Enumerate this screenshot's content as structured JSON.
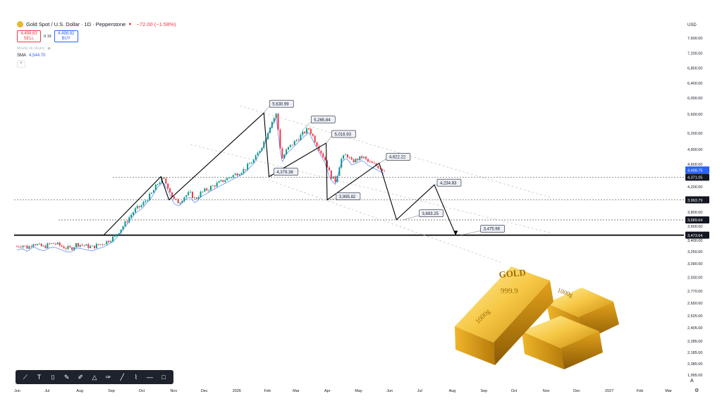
{
  "header": {
    "title": "Gold Spot / U.S. Dollar · 1D · Pepperstone",
    "change": "−72.00 (−1.58%)",
    "sell_price": "4,498.63",
    "sell_label": "SELL",
    "spread": "0.19",
    "buy_price": "4,498.82",
    "buy_label": "BUY",
    "indicator": "Mostly Hi (Auto)",
    "sma_label": "SMA",
    "sma_value": "4,544.70"
  },
  "currency": "USD",
  "toolbar_icons": [
    "trend-line-icon",
    "text-icon",
    "note-icon",
    "brush-icon",
    "highlighter-icon",
    "ruler-icon",
    "pen-icon",
    "line-icon",
    "path-icon",
    "horizontal-line-icon",
    "rectangle-icon"
  ],
  "bottom_right": {
    "auto_label": "A",
    "settings_icon": "gear-icon"
  },
  "gold_bars": {
    "label_top": "GOLD",
    "purity": "999.9",
    "weight": "1000g",
    "small_label": "1000g"
  },
  "chart_data": {
    "type": "candlestick",
    "y_axis_ticks": [
      "7,600.00",
      "7,200.00",
      "6,800.00",
      "6,400.00",
      "6,000.00",
      "5,600.00",
      "5,200.00",
      "4,900.00",
      "4,600.00",
      "4,200.00",
      "3,800.00",
      "3,600.00",
      "3,400.00",
      "3,250.00",
      "3,090.00",
      "2,930.00",
      "2,770.00",
      "2,650.00",
      "2,525.00",
      "2,405.00",
      "2,285.00",
      "2,185.00",
      "2,085.00",
      "1,995.00"
    ],
    "x_axis_ticks": [
      "Jun",
      "Jul",
      "Aug",
      "Sep",
      "Oct",
      "Nov",
      "Dec",
      "2026",
      "Feb",
      "Mar",
      "Apr",
      "May",
      "Jun",
      "Jul",
      "Aug",
      "Sep",
      "Oct",
      "Nov",
      "Dec",
      "2027",
      "Feb",
      "Mar"
    ],
    "price_labels": [
      {
        "value": "4,498.75",
        "style": "blue"
      },
      {
        "value": "4,371.05",
        "style": "dark"
      },
      {
        "value": "3,993.79",
        "style": "dark"
      },
      {
        "value": "3,689.64",
        "style": "dark"
      },
      {
        "value": "3,473.64",
        "style": "dark"
      }
    ],
    "annotations": [
      "5,630.99",
      "5,265.84",
      "5,016.93",
      "4,379.38",
      "4,622.22",
      "3,995.82",
      "4,234.83",
      "3,693.25",
      "3,475.96"
    ],
    "horizontal_levels": [
      4371.05,
      3993.79,
      3689.64
    ],
    "support_level": 3473.64,
    "zigzag": [
      {
        "date": "2025-08-25",
        "price": 3473.64
      },
      {
        "date": "2025-10-20",
        "price": 4379.38
      },
      {
        "date": "2025-10-28",
        "price": 3993.79
      },
      {
        "date": "2026-01-29",
        "price": 5630.99
      },
      {
        "date": "2026-02-03",
        "price": 4379.38
      },
      {
        "date": "2026-03-31",
        "price": 5016.93
      },
      {
        "date": "2026-04-01",
        "price": 3993.79
      },
      {
        "date": "2026-05-22",
        "price": 4622.22
      },
      {
        "date": "2026-06-08",
        "price": 3693.25
      },
      {
        "date": "2026-07-15",
        "price": 4234.83
      },
      {
        "date": "2026-08-05",
        "price": 3475.96
      }
    ],
    "candles": {
      "from": "2025-06-01",
      "to": "2026-05-27",
      "approx_closes": [
        3320,
        3340,
        3300,
        3370,
        3330,
        3310,
        3350,
        3360,
        3330,
        3300,
        3290,
        3350,
        3340,
        3320,
        3310,
        3340,
        3360,
        3400,
        3450,
        3540,
        3640,
        3750,
        3850,
        3900,
        4000,
        4100,
        4250,
        4350,
        4200,
        4000,
        3950,
        4050,
        4100,
        4000,
        4100,
        4150,
        4200,
        4250,
        4300,
        4350,
        4400,
        4450,
        4500,
        4600,
        4700,
        4900,
        5100,
        5400,
        5600,
        4700,
        4900,
        5000,
        5100,
        5200,
        5300,
        5100,
        4900,
        4700,
        4400,
        4300,
        4700,
        4800,
        4650,
        4700,
        4750,
        4650,
        4600,
        4550,
        4500
      ]
    }
  }
}
